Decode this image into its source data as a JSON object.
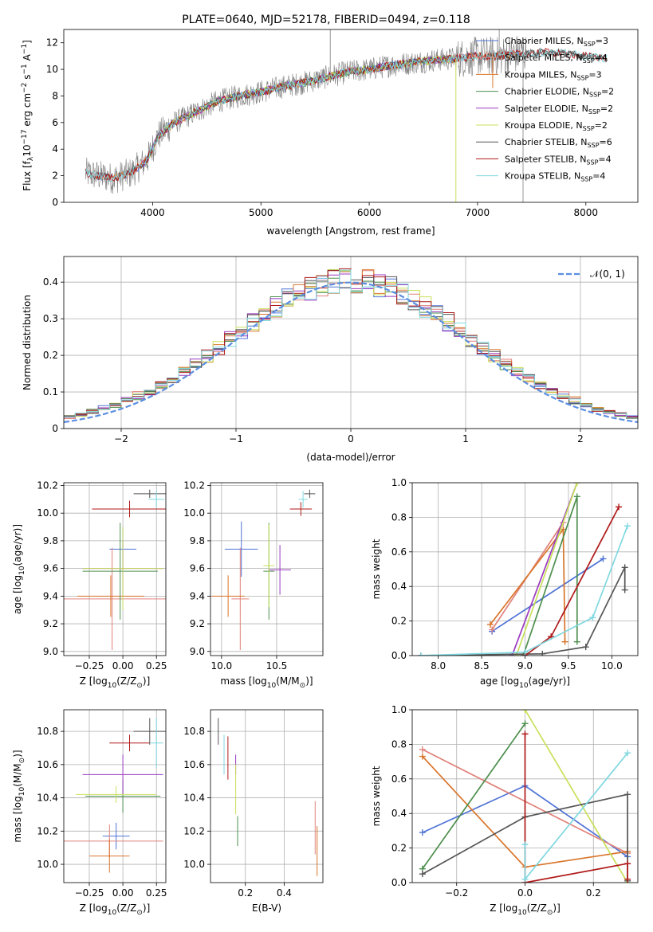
{
  "colors": {
    "Chabrier MILES": "#4f73d6",
    "Salpeter MILES": "#e0827a",
    "Kroupa MILES": "#d9752b",
    "Chabrier ELODIE": "#4d8f4d",
    "Salpeter ELODIE": "#9a3ac0",
    "Kroupa ELODIE": "#c8e05a",
    "Chabrier STELIB": "#555555",
    "Salpeter STELIB": "#b01a1a",
    "Kroupa STELIB": "#80d8e0",
    "Normal": "#5b8ee0",
    "Observed": "#808080"
  },
  "chart_data": [
    {
      "id": "spectrum",
      "type": "line",
      "title": "PLATE=0640, MJD=52178, FIBERID=0494, z=0.118",
      "xlabel": "wavelength [Angstrom, rest frame]",
      "ylabel_main": "Flux [f",
      "ylabel_sub": "λ",
      "ylabel_rest": "10",
      "ylabel_exp1": "−17",
      "ylabel_mid": " erg cm",
      "ylabel_exp2": "−2",
      "ylabel_mid2": " s",
      "ylabel_exp3": "−1",
      "ylabel_mid3": " A",
      "ylabel_exp4": "−1",
      "ylabel_end": "]",
      "xlim": [
        3180,
        8480
      ],
      "ylim": [
        0,
        13
      ],
      "xticks": [
        4000,
        5000,
        6000,
        7000,
        8000
      ],
      "yticks": [
        0,
        2,
        4,
        6,
        8,
        10,
        12
      ],
      "legend_position": "right",
      "legend": [
        {
          "text": "Chabrier MILES, N",
          "sub": "SSP",
          "tail": "=3",
          "series": "Chabrier MILES"
        },
        {
          "text": "Salpeter MILES, N",
          "sub": "SSP",
          "tail": "=4",
          "series": "Salpeter MILES"
        },
        {
          "text": "Kroupa MILES, N",
          "sub": "SSP",
          "tail": "=3",
          "series": "Kroupa MILES"
        },
        {
          "text": "Chabrier ELODIE, N",
          "sub": "SSP",
          "tail": "=2",
          "series": "Chabrier ELODIE"
        },
        {
          "text": "Salpeter ELODIE, N",
          "sub": "SSP",
          "tail": "=2",
          "series": "Salpeter ELODIE"
        },
        {
          "text": "Kroupa ELODIE, N",
          "sub": "SSP",
          "tail": "=2",
          "series": "Kroupa ELODIE"
        },
        {
          "text": "Chabrier STELIB, N",
          "sub": "SSP",
          "tail": "=6",
          "series": "Chabrier STELIB"
        },
        {
          "text": "Salpeter STELIB, N",
          "sub": "SSP",
          "tail": "=4",
          "series": "Salpeter STELIB"
        },
        {
          "text": "Kroupa STELIB, N",
          "sub": "SSP",
          "tail": "=4",
          "series": "Kroupa STELIB"
        }
      ],
      "continuum": {
        "x": [
          3380,
          3500,
          3650,
          3800,
          3950,
          4050,
          4200,
          4400,
          4600,
          4800,
          5000,
          5200,
          5400,
          5600,
          5800,
          6000,
          6200,
          6400,
          6600,
          6800,
          7000,
          7200,
          7400,
          7600,
          7800,
          8000,
          8200
        ],
        "y": [
          2.2,
          2.0,
          1.8,
          2.2,
          3.2,
          5.0,
          6.0,
          6.8,
          7.6,
          8.0,
          8.3,
          8.7,
          9.0,
          9.4,
          9.8,
          10.0,
          10.3,
          10.5,
          10.7,
          10.8,
          11.0,
          11.0,
          11.2,
          11.3,
          11.2,
          11.0,
          10.8
        ]
      }
    },
    {
      "id": "residuals",
      "type": "line",
      "xlabel": "(data-model)/error",
      "ylabel": "Normed distribution",
      "xlim": [
        -2.5,
        2.5
      ],
      "ylim": [
        0,
        0.47
      ],
      "xticks": [
        -2,
        -1,
        0,
        1,
        2
      ],
      "yticks": [
        0.0,
        0.1,
        0.2,
        0.3,
        0.4
      ],
      "legend": "𝒩(0, 1)",
      "legend_position": "top-right",
      "normal": {
        "mean": 0,
        "sigma": 1
      }
    },
    {
      "id": "age-vs-Z",
      "type": "scatter",
      "xlabel": "Z [log",
      "xlabel_sub": "10",
      "xlabel_tail": "(Z/Z",
      "xlabel_sub2": "⊙",
      "xlabel_end": ")]",
      "ylabel": "age  [log",
      "ylabel_sub": "10",
      "ylabel_tail": "(age/yr)]",
      "xlim": [
        -0.44,
        0.32
      ],
      "ylim": [
        8.97,
        10.22
      ],
      "xticks": [
        -0.25,
        0.0,
        0.25
      ],
      "yticks": [
        9.0,
        9.2,
        9.4,
        9.6,
        9.8,
        10.0,
        10.2
      ],
      "points": [
        {
          "series": "Chabrier MILES",
          "x": 0.0,
          "y": 9.74,
          "xerr": 0.1,
          "yerr": 0.16
        },
        {
          "series": "Salpeter MILES",
          "x": -0.08,
          "y": 9.38,
          "xerr": 0.4,
          "yerr": 0.37
        },
        {
          "series": "Kroupa MILES",
          "x": -0.09,
          "y": 9.4,
          "xerr": 0.25,
          "yerr": 0.15
        },
        {
          "series": "Chabrier ELODIE",
          "x": -0.02,
          "y": 9.58,
          "xerr": 0.28,
          "yerr": 0.35
        },
        {
          "series": "Salpeter ELODIE",
          "x": 0.0,
          "y": 9.6,
          "xerr": 0.3,
          "yerr": 0.2
        },
        {
          "series": "Kroupa ELODIE",
          "x": 0.0,
          "y": 9.6,
          "xerr": 0.3,
          "yerr": 0.3
        },
        {
          "series": "Chabrier STELIB",
          "x": 0.2,
          "y": 10.14,
          "xerr": 0.12,
          "yerr": 0.03
        },
        {
          "series": "Salpeter STELIB",
          "x": 0.05,
          "y": 10.03,
          "xerr": 0.28,
          "yerr": 0.06
        },
        {
          "series": "Kroupa STELIB",
          "x": 0.25,
          "y": 10.1,
          "xerr": 0.06,
          "yerr": 0.06
        }
      ]
    },
    {
      "id": "age-vs-mass",
      "type": "scatter",
      "xlabel": "mass [log",
      "xlabel_sub": "10",
      "xlabel_tail": "(M/M",
      "xlabel_sub2": "⊙",
      "xlabel_end": ")]",
      "xlim": [
        9.9,
        10.92
      ],
      "ylim": [
        8.97,
        10.22
      ],
      "xticks": [
        10.0,
        10.5
      ],
      "yticks": [
        9.0,
        9.2,
        9.4,
        9.6,
        9.8,
        10.0,
        10.2
      ],
      "points": [
        {
          "series": "Chabrier MILES",
          "x": 10.18,
          "y": 9.74,
          "xerr": 0.15,
          "yerr": 0.2
        },
        {
          "series": "Salpeter MILES",
          "x": 10.17,
          "y": 9.38,
          "xerr": 0.08,
          "yerr": 0.37
        },
        {
          "series": "Kroupa MILES",
          "x": 10.06,
          "y": 9.4,
          "xerr": 0.15,
          "yerr": 0.15
        },
        {
          "series": "Chabrier ELODIE",
          "x": 10.43,
          "y": 9.58,
          "xerr": 0.05,
          "yerr": 0.35
        },
        {
          "series": "Salpeter ELODIE",
          "x": 10.53,
          "y": 9.59,
          "xerr": 0.1,
          "yerr": 0.18
        },
        {
          "series": "Kroupa ELODIE",
          "x": 10.43,
          "y": 9.62,
          "xerr": 0.05,
          "yerr": 0.3
        },
        {
          "series": "Chabrier STELIB",
          "x": 10.8,
          "y": 10.14,
          "xerr": 0.05,
          "yerr": 0.03
        },
        {
          "series": "Salpeter STELIB",
          "x": 10.72,
          "y": 10.03,
          "xerr": 0.1,
          "yerr": 0.05
        },
        {
          "series": "Kroupa STELIB",
          "x": 10.74,
          "y": 10.1,
          "xerr": 0.04,
          "yerr": 0.06
        }
      ]
    },
    {
      "id": "weight-vs-age",
      "type": "line",
      "xlabel": "age  [log",
      "xlabel_sub": "10",
      "xlabel_tail": "(age/yr)]",
      "ylabel": "mass weight",
      "xlim": [
        7.7,
        10.3
      ],
      "ylim": [
        0,
        1
      ],
      "xticks": [
        8.0,
        8.5,
        9.0,
        9.5,
        10.0
      ],
      "yticks": [
        0.0,
        0.2,
        0.4,
        0.6,
        0.8,
        1.0
      ],
      "series": [
        {
          "name": "Chabrier MILES",
          "x": [
            8.62,
            9.9
          ],
          "y": [
            0.14,
            0.56
          ]
        },
        {
          "name": "Salpeter MILES",
          "x": [
            8.62,
            9.44
          ],
          "y": [
            0.15,
            0.77
          ]
        },
        {
          "name": "Kroupa MILES",
          "x": [
            8.6,
            9.44,
            9.46
          ],
          "y": [
            0.18,
            0.73,
            0.08
          ]
        },
        {
          "name": "Chabrier ELODIE",
          "x": [
            8.98,
            9.6,
            9.6
          ],
          "y": [
            0.0,
            0.92,
            0.08
          ]
        },
        {
          "name": "Salpeter ELODIE",
          "x": [
            8.85,
            9.6
          ],
          "y": [
            0.0,
            1.0
          ]
        },
        {
          "name": "Kroupa ELODIE",
          "x": [
            8.9,
            9.6
          ],
          "y": [
            0.0,
            1.0
          ]
        },
        {
          "name": "Chabrier STELIB",
          "x": [
            7.8,
            9.2,
            9.7,
            10.15,
            10.15
          ],
          "y": [
            0.0,
            0.01,
            0.05,
            0.51,
            0.38
          ]
        },
        {
          "name": "Salpeter STELIB",
          "x": [
            9.0,
            9.3,
            10.08
          ],
          "y": [
            0.0,
            0.11,
            0.86
          ]
        },
        {
          "name": "Kroupa STELIB",
          "x": [
            7.8,
            9.0,
            9.78,
            10.18
          ],
          "y": [
            0.0,
            0.02,
            0.22,
            0.75
          ]
        }
      ]
    },
    {
      "id": "mass-vs-Z",
      "type": "scatter",
      "xlabel": "Z [log",
      "xlabel_sub": "10",
      "xlabel_tail": "(Z/Z",
      "xlabel_sub2": "⊙",
      "xlabel_end": ")]",
      "ylabel": "mass [log",
      "ylabel_sub": "10",
      "ylabel_tail": "(M/M",
      "ylabel_sub2": "⊙",
      "ylabel_end": ")]",
      "xlim": [
        -0.44,
        0.32
      ],
      "ylim": [
        9.89,
        10.93
      ],
      "xticks": [
        -0.25,
        0.0,
        0.25
      ],
      "yticks": [
        10.0,
        10.2,
        10.4,
        10.6,
        10.8
      ],
      "points": [
        {
          "series": "Chabrier MILES",
          "x": -0.05,
          "y": 10.17,
          "xerr": 0.1,
          "yerr": 0.08
        },
        {
          "series": "Salpeter MILES",
          "x": -0.1,
          "y": 10.14,
          "xerr": 0.4,
          "yerr": 0.1
        },
        {
          "series": "Kroupa MILES",
          "x": -0.1,
          "y": 10.05,
          "xerr": 0.15,
          "yerr": 0.1
        },
        {
          "series": "Chabrier ELODIE",
          "x": 0.0,
          "y": 10.41,
          "xerr": 0.28,
          "yerr": 0.1
        },
        {
          "series": "Salpeter ELODIE",
          "x": 0.0,
          "y": 10.54,
          "xerr": 0.3,
          "yerr": 0.12
        },
        {
          "series": "Kroupa ELODIE",
          "x": -0.05,
          "y": 10.42,
          "xerr": 0.3,
          "yerr": 0.05
        },
        {
          "series": "Chabrier STELIB",
          "x": 0.2,
          "y": 10.8,
          "xerr": 0.12,
          "yerr": 0.08
        },
        {
          "series": "Salpeter STELIB",
          "x": 0.05,
          "y": 10.73,
          "xerr": 0.15,
          "yerr": 0.05
        },
        {
          "series": "Kroupa STELIB",
          "x": 0.25,
          "y": 10.73,
          "xerr": 0.05,
          "yerr": 0.15
        }
      ]
    },
    {
      "id": "mass-vs-EBV",
      "type": "scatter",
      "xlabel": "E(B-V)",
      "xlim": [
        0.02,
        0.6
      ],
      "ylim": [
        9.89,
        10.93
      ],
      "xticks": [
        0.2,
        0.4
      ],
      "yticks": [
        10.0,
        10.2,
        10.4,
        10.6,
        10.8
      ],
      "points": [
        {
          "series": "Chabrier STELIB",
          "x": 0.06,
          "y": 10.8,
          "yerr": 0.08
        },
        {
          "series": "Kroupa STELIB",
          "x": 0.09,
          "y": 10.66,
          "yerr": 0.12
        },
        {
          "series": "Salpeter STELIB",
          "x": 0.11,
          "y": 10.64,
          "yerr": 0.13
        },
        {
          "series": "Salpeter ELODIE",
          "x": 0.15,
          "y": 10.6,
          "yerr": 0.06
        },
        {
          "series": "Kroupa ELODIE",
          "x": 0.15,
          "y": 10.45,
          "yerr": 0.15
        },
        {
          "series": "Chabrier ELODIE",
          "x": 0.16,
          "y": 10.2,
          "yerr": 0.09
        },
        {
          "series": "Salpeter MILES",
          "x": 0.56,
          "y": 10.22,
          "yerr": 0.16
        },
        {
          "series": "Kroupa MILES",
          "x": 0.57,
          "y": 10.08,
          "yerr": 0.15
        }
      ]
    },
    {
      "id": "weight-vs-Z",
      "type": "line",
      "xlabel": "Z [log",
      "xlabel_sub": "10",
      "xlabel_tail": "(Z/Z",
      "xlabel_sub2": "⊙",
      "xlabel_end": ")]",
      "ylabel": "mass weight",
      "xlim": [
        -0.33,
        0.33
      ],
      "ylim": [
        0,
        1
      ],
      "xticks": [
        -0.2,
        0.0,
        0.2
      ],
      "yticks": [
        0.0,
        0.2,
        0.4,
        0.6,
        0.8,
        1.0
      ],
      "series": [
        {
          "name": "Chabrier MILES",
          "x": [
            -0.3,
            0.0,
            0.3
          ],
          "y": [
            0.29,
            0.56,
            0.15
          ]
        },
        {
          "name": "Salpeter MILES",
          "x": [
            -0.3,
            0.3
          ],
          "y": [
            0.77,
            0.17
          ]
        },
        {
          "name": "Kroupa MILES",
          "x": [
            -0.3,
            0.0,
            0.3
          ],
          "y": [
            0.73,
            0.09,
            0.18
          ]
        },
        {
          "name": "Chabrier ELODIE",
          "x": [
            -0.3,
            0.0
          ],
          "y": [
            0.08,
            0.92
          ]
        },
        {
          "name": "Kroupa ELODIE",
          "x": [
            0.0,
            0.3
          ],
          "y": [
            1.0,
            0.0
          ]
        },
        {
          "name": "Chabrier STELIB",
          "x": [
            -0.3,
            0.0,
            0.3,
            0.3
          ],
          "y": [
            0.05,
            0.38,
            0.51,
            0.01
          ]
        },
        {
          "name": "Salpeter STELIB",
          "x": [
            0.0,
            0.0,
            0.3,
            0.3
          ],
          "y": [
            0.86,
            0.0,
            0.11,
            0.02
          ]
        },
        {
          "name": "Kroupa STELIB",
          "x": [
            0.0,
            0.0,
            0.3
          ],
          "y": [
            0.22,
            0.02,
            0.75
          ]
        }
      ]
    }
  ]
}
